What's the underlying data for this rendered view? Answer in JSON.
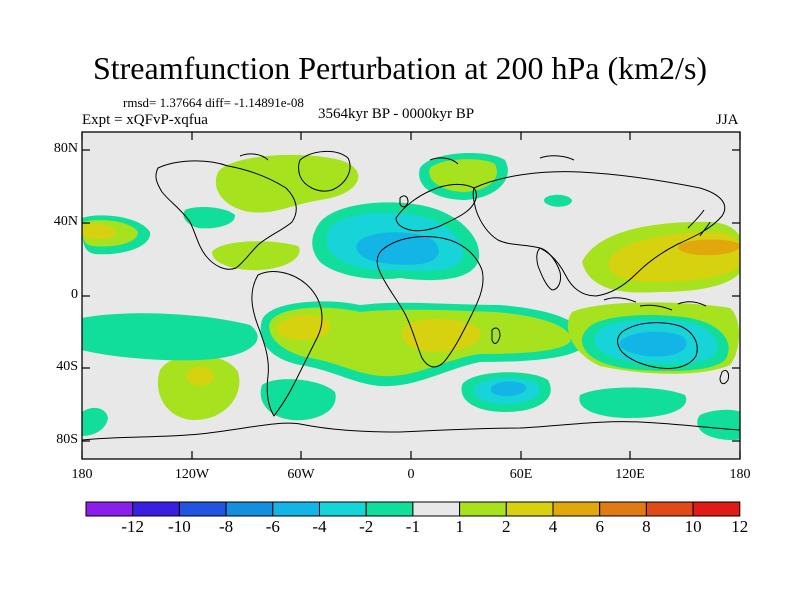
{
  "title": "Streamfunction Perturbation at 200 hPa (km2/s)",
  "stats_line": "rmsd= 1.37664 diff= -1.14891e-08",
  "experiment": "Expt = xQFvP-xqfua",
  "period": "3564kyr BP - 0000kyr BP",
  "season": "JJA",
  "y_axis_labels": [
    "80N",
    "40N",
    "0",
    "40S",
    "80S"
  ],
  "x_axis_labels": [
    "180",
    "120W",
    "60W",
    "0",
    "60E",
    "120E",
    "180"
  ],
  "colorbar": {
    "labels": [
      "-12",
      "-10",
      "-8",
      "-6",
      "-4",
      "-2",
      "-1",
      "1",
      "2",
      "4",
      "6",
      "8",
      "10",
      "12"
    ],
    "colors": [
      "#8b1ee8",
      "#3a1fe0",
      "#1f55e0",
      "#138fe0",
      "#13b5e6",
      "#17d4d8",
      "#12de9c",
      "#e8e8e8",
      "#a6e21e",
      "#d7d20f",
      "#e0a80d",
      "#e07a12",
      "#e04a15",
      "#e01a15"
    ]
  },
  "map": {
    "projection": "cylindrical equidistant",
    "lon_range": [
      -180,
      180
    ],
    "lat_range": [
      -90,
      90
    ],
    "background_color": "#e8e8e8"
  }
}
